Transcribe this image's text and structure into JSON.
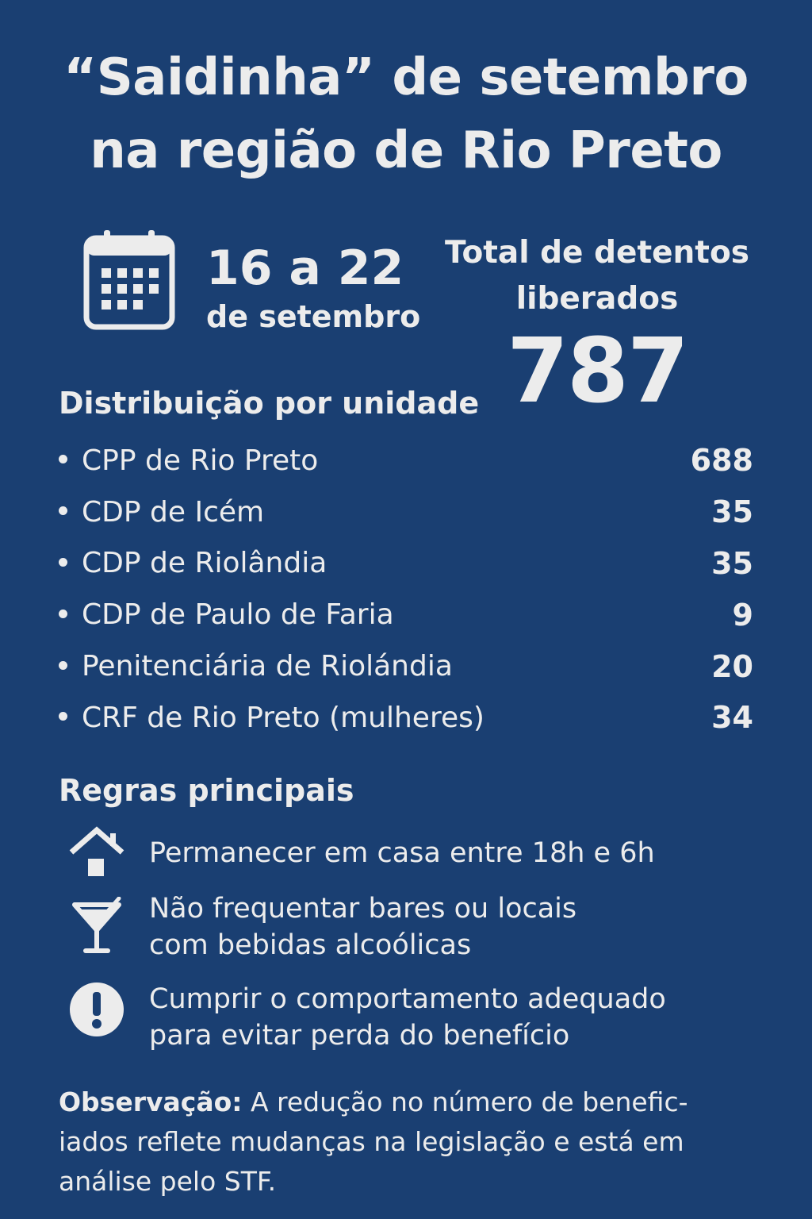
{
  "title": {
    "line1": "“Saidinha” de setembro",
    "line2": "na região de Rio Preto"
  },
  "period": {
    "icon": "calendar-icon",
    "main": "16 a 22",
    "sub": "de setembro"
  },
  "total": {
    "label_line1": "Total de detentos",
    "label_line2": "liberados",
    "value": "787"
  },
  "distribution": {
    "title": "Distribuição por unidade",
    "units": [
      {
        "name": "CPP de Rio Preto",
        "value": "688"
      },
      {
        "name": "CDP de Icém",
        "value": "35"
      },
      {
        "name": "CDP de Riolândia",
        "value": "35"
      },
      {
        "name": "CDP de Paulo de Faria",
        "value": "9"
      },
      {
        "name": "Penitenciária de Riolándia",
        "value": "20"
      },
      {
        "name": "CRF de Rio Preto (mulheres)",
        "value": "34"
      }
    ]
  },
  "rules": {
    "title": "Regras principais",
    "items": [
      {
        "icon": "house-icon",
        "line1": "Permanecer em casa entre  18h e 6h"
      },
      {
        "icon": "cocktail-glass-icon",
        "line1": "Não frequentar bares ou locais",
        "line2": "com bebidas alcoólicas"
      },
      {
        "icon": "exclamation-circle-icon",
        "line1": "Cumprir o comportamento adequado",
        "line2": "para evitar perda do benefício"
      }
    ]
  },
  "note": {
    "label": "Observação:",
    "line1": " A redução no número de benefic-",
    "line2": "iados reflete mudanças na legislação e está em",
    "line3": "análise pelo STF."
  },
  "colors": {
    "background": "#1a3f72",
    "text": "#ececec"
  }
}
